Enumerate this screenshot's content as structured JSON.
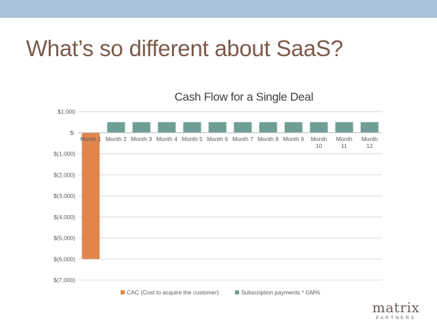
{
  "slide": {
    "title": "What’s so different about SaaS?"
  },
  "logo": {
    "main": "matrix",
    "sub": "PARTNERS"
  },
  "colors": {
    "topbar": "#a9c3de",
    "title": "#7a5a4a",
    "cac": "#e0864c",
    "subscription": "#6f9f94"
  },
  "chart_data": {
    "type": "bar",
    "title": "Cash Flow for a Single Deal",
    "categories": [
      "Month 1",
      "Month 2",
      "Month 3",
      "Month 4",
      "Month 5",
      "Month 6",
      "Month 7",
      "Month 8",
      "Month 9",
      "Month 10",
      "Month 11",
      "Month 12"
    ],
    "series": [
      {
        "name": "CAC (Cost to acquire the customer)",
        "values": [
          -6000,
          0,
          0,
          0,
          0,
          0,
          0,
          0,
          0,
          0,
          0,
          0
        ]
      },
      {
        "name": "Subscription payments * GM%",
        "values": [
          0,
          500,
          500,
          500,
          500,
          500,
          500,
          500,
          500,
          500,
          500,
          500
        ]
      }
    ],
    "ylim": [
      -7000,
      1000
    ],
    "yticks": [
      1000,
      0,
      -1000,
      -2000,
      -3000,
      -4000,
      -5000,
      -6000,
      -7000
    ],
    "ytick_labels": [
      "$1,000",
      "$-",
      "$(1,000)",
      "$(2,000)",
      "$(3,000)",
      "$(4,000)",
      "$(5,000)",
      "$(6,000)",
      "$(7,000)"
    ],
    "xlabel": "",
    "ylabel": "",
    "grid": true,
    "legend_position": "bottom"
  }
}
